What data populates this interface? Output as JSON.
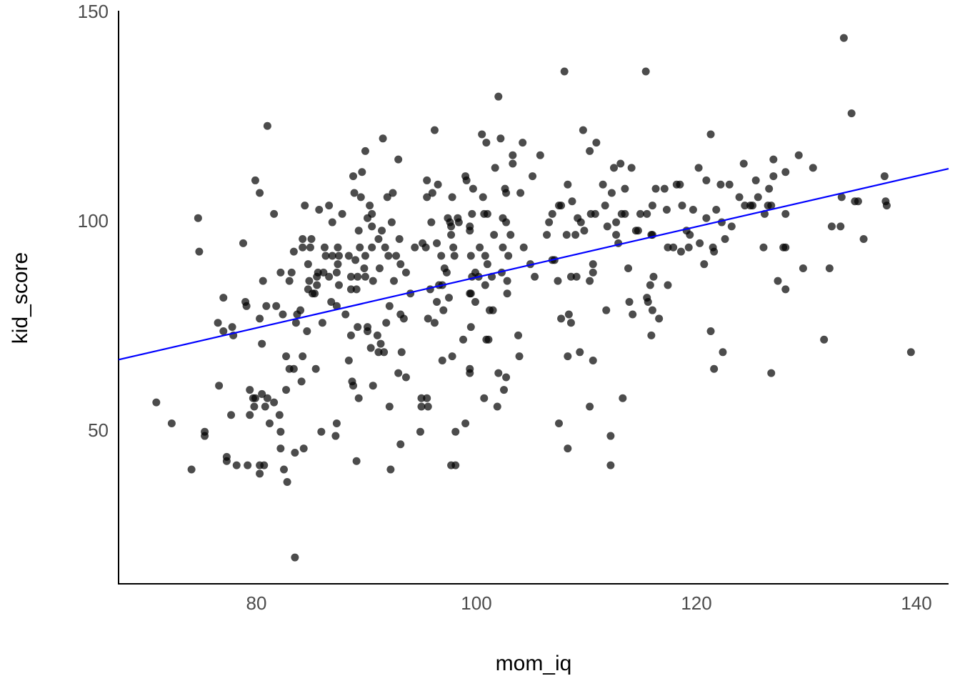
{
  "chart_data": {
    "type": "scatter",
    "x_label": "mom_iq",
    "y_label": "kid_score",
    "xlim": [
      67.47,
      142.92
    ],
    "ylim": [
      13.7,
      150.5
    ],
    "xticks": [
      80,
      100,
      120,
      140
    ],
    "yticks": [
      50,
      100,
      150
    ],
    "grid": false,
    "color": "#000000",
    "opacity": 0.7,
    "x": [
      70.9,
      72.3,
      74.1,
      74.7,
      74.8,
      75.3,
      75.3,
      76.5,
      76.6,
      77.0,
      77.0,
      77.3,
      77.3,
      77.8,
      77.7,
      77.9,
      78.2,
      78.8,
      79.0,
      79.1,
      79.2,
      79.4,
      79.4,
      79.7,
      79.9,
      79.8,
      79.9,
      80.3,
      80.3,
      80.3,
      80.3,
      80.5,
      80.5,
      80.7,
      80.6,
      80.8,
      80.9,
      81.0,
      81.0,
      81.2,
      81.6,
      81.6,
      81.8,
      82.1,
      82.2,
      82.2,
      82.2,
      82.4,
      82.5,
      82.7,
      82.7,
      82.8,
      83.0,
      83.4,
      83.0,
      83.2,
      83.4,
      83.5,
      83.5,
      83.6,
      83.7,
      84.0,
      84.1,
      84.2,
      84.2,
      84.2,
      84.3,
      84.4,
      84.6,
      84.7,
      84.7,
      84.8,
      84.9,
      85.0,
      85.1,
      85.3,
      85.4,
      85.5,
      85.5,
      85.6,
      85.7,
      85.9,
      86.0,
      86.1,
      86.2,
      86.3,
      86.6,
      86.6,
      86.8,
      86.9,
      86.9,
      87.2,
      87.3,
      87.3,
      87.3,
      87.4,
      87.4,
      87.5,
      87.5,
      87.8,
      88.1,
      88.4,
      88.4,
      88.6,
      88.6,
      88.6,
      88.7,
      88.8,
      88.8,
      88.9,
      89.0,
      89.1,
      89.1,
      89.2,
      89.2,
      89.3,
      89.3,
      89.4,
      89.5,
      89.6,
      89.8,
      89.9,
      89.9,
      89.9,
      90.1,
      90.1,
      90.1,
      90.3,
      90.4,
      90.5,
      90.5,
      90.5,
      90.6,
      90.6,
      91.0,
      91.1,
      91.1,
      91.2,
      91.3,
      91.4,
      91.5,
      91.6,
      91.7,
      91.8,
      91.9,
      92.0,
      92.1,
      92.1,
      92.2,
      92.3,
      92.4,
      92.5,
      92.7,
      92.9,
      92.9,
      93.0,
      93.1,
      93.1,
      93.1,
      93.2,
      93.4,
      93.6,
      93.6,
      94.0,
      94.4,
      94.9,
      95.0,
      95.0,
      95.1,
      95.4,
      95.5,
      95.5,
      95.5,
      95.6,
      95.6,
      95.8,
      95.9,
      96.0,
      96.2,
      96.2,
      96.4,
      96.4,
      96.5,
      96.6,
      96.8,
      96.9,
      96.9,
      97.0,
      97.1,
      97.3,
      97.4,
      97.6,
      97.5,
      97.7,
      97.7,
      97.7,
      98.1,
      97.8,
      97.8,
      97.9,
      98.0,
      98.1,
      98.3,
      98.4,
      98.8,
      99.0,
      99.0,
      99.1,
      99.4,
      99.5,
      99.4,
      99.4,
      99.4,
      99.4,
      99.5,
      99.5,
      99.6,
      99.6,
      99.7,
      99.9,
      99.9,
      100.2,
      100.3,
      100.5,
      100.6,
      100.7,
      101.0,
      100.7,
      100.8,
      100.8,
      100.9,
      100.9,
      101.1,
      101.0,
      101.2,
      101.5,
      101.4,
      101.6,
      101.7,
      101.9,
      102.0,
      102.0,
      102.2,
      102.3,
      102.4,
      102.4,
      102.5,
      102.6,
      102.7,
      102.7,
      102.7,
      102.8,
      102.8,
      102.9,
      103.1,
      103.3,
      103.3,
      103.8,
      103.9,
      104.0,
      104.2,
      104.3,
      104.9,
      105.1,
      105.3,
      105.8,
      106.4,
      106.6,
      106.9,
      106.9,
      107.1,
      107.4,
      107.5,
      107.7,
      107.5,
      107.7,
      108.0,
      108.2,
      108.3,
      108.3,
      108.3,
      108.4,
      108.6,
      108.6,
      108.7,
      109.0,
      109.1,
      109.2,
      109.4,
      109.5,
      109.7,
      109.8,
      110.3,
      110.3,
      110.3,
      110.4,
      110.8,
      110.6,
      110.6,
      110.6,
      110.9,
      111.5,
      111.7,
      111.8,
      111.9,
      112.2,
      112.2,
      112.3,
      112.5,
      112.7,
      112.7,
      112.9,
      113.1,
      113.2,
      113.5,
      113.3,
      113.5,
      113.8,
      113.9,
      114.1,
      114.2,
      114.5,
      114.7,
      114.9,
      115.4,
      115.5,
      115.5,
      115.6,
      115.8,
      115.9,
      116.0,
      115.9,
      116.0,
      116.0,
      116.1,
      116.3,
      116.6,
      117.1,
      117.3,
      117.4,
      117.4,
      117.9,
      118.2,
      118.5,
      118.6,
      118.7,
      119.1,
      119.3,
      119.4,
      119.7,
      120.2,
      120.3,
      120.7,
      120.9,
      120.9,
      121.3,
      121.3,
      121.5,
      121.6,
      121.6,
      121.8,
      122.2,
      122.3,
      122.4,
      122.6,
      123.0,
      123.2,
      123.9,
      124.3,
      124.4,
      124.9,
      125.1,
      125.4,
      125.6,
      126.1,
      126.2,
      126.5,
      126.8,
      126.6,
      126.8,
      127.0,
      127.0,
      127.4,
      127.9,
      128.1,
      128.1,
      128.1,
      128.1,
      129.3,
      129.7,
      130.6,
      131.6,
      132.1,
      132.3,
      133.1,
      133.2,
      133.4,
      134.1,
      134.4,
      134.7,
      135.2,
      137.1,
      137.2,
      137.3,
      139.5
    ],
    "values": [
      57,
      52,
      41,
      101,
      93,
      50,
      49,
      76,
      61,
      82,
      74,
      44,
      43,
      75,
      54,
      73,
      42,
      95,
      81,
      80,
      42,
      60,
      54,
      58,
      58,
      56,
      110,
      77,
      42,
      40,
      107,
      71,
      59,
      42,
      86,
      56,
      80,
      123,
      58,
      52,
      57,
      102,
      80,
      54,
      50,
      88,
      46,
      78,
      41,
      68,
      60,
      38,
      65,
      65,
      86,
      88,
      93,
      45,
      20,
      76,
      78,
      79,
      62,
      68,
      96,
      94,
      46,
      104,
      74,
      84,
      90,
      86,
      94,
      96,
      83,
      83,
      65,
      85,
      87,
      88,
      103,
      50,
      76,
      88,
      94,
      92,
      104,
      87,
      81,
      100,
      92,
      49,
      52,
      88,
      80,
      90,
      94,
      85,
      92,
      102,
      78,
      92,
      67,
      73,
      87,
      84,
      62,
      61,
      111,
      107,
      91,
      43,
      84,
      75,
      87,
      58,
      98,
      94,
      106,
      112,
      89,
      87,
      117,
      92,
      101,
      74,
      75,
      104,
      70,
      94,
      102,
      99,
      61,
      86,
      73,
      96,
      69,
      89,
      71,
      98,
      120,
      69,
      94,
      76,
      106,
      92,
      80,
      56,
      41,
      100,
      107,
      86,
      92,
      115,
      64,
      96,
      78,
      47,
      90,
      69,
      77,
      88,
      63,
      83,
      94,
      50,
      58,
      56,
      95,
      94,
      110,
      106,
      58,
      56,
      77,
      84,
      100,
      107,
      122,
      76,
      81,
      95,
      109,
      85,
      92,
      67,
      85,
      79,
      89,
      88,
      101,
      100,
      82,
      99,
      97,
      42,
      42,
      68,
      106,
      94,
      92,
      50,
      101,
      100,
      72,
      52,
      111,
      110,
      83,
      83,
      99,
      98,
      65,
      64,
      92,
      75,
      102,
      87,
      108,
      81,
      88,
      87,
      94,
      121,
      106,
      102,
      102,
      58,
      92,
      85,
      119,
      72,
      72,
      90,
      79,
      79,
      87,
      97,
      113,
      56,
      64,
      130,
      120,
      88,
      94,
      101,
      60,
      108,
      107,
      63,
      100,
      86,
      83,
      92,
      97,
      116,
      114,
      73,
      68,
      107,
      119,
      94,
      90,
      111,
      87,
      116,
      97,
      100,
      102,
      91,
      91,
      86,
      104,
      104,
      52,
      77,
      136,
      97,
      109,
      68,
      46,
      78,
      76,
      87,
      105,
      97,
      87,
      101,
      69,
      100,
      122,
      98,
      117,
      56,
      86,
      102,
      102,
      88,
      67,
      90,
      119,
      109,
      104,
      79,
      99,
      49,
      42,
      107,
      113,
      97,
      100,
      95,
      114,
      102,
      102,
      58,
      108,
      89,
      81,
      113,
      78,
      98,
      98,
      102,
      136,
      102,
      82,
      81,
      85,
      97,
      97,
      73,
      79,
      104,
      87,
      108,
      77,
      108,
      103,
      85,
      94,
      94,
      109,
      109,
      93,
      104,
      98,
      94,
      97,
      103,
      113,
      95,
      90,
      110,
      101,
      121,
      74,
      94,
      93,
      65,
      103,
      109,
      100,
      69,
      96,
      109,
      99,
      106,
      114,
      104,
      104,
      104,
      110,
      106,
      94,
      102,
      104,
      104,
      108,
      64,
      115,
      111,
      86,
      94,
      94,
      84,
      112,
      102,
      116,
      89,
      113,
      72,
      89,
      99,
      99,
      106,
      144,
      126,
      105,
      105,
      96,
      111,
      105,
      104,
      69
    ],
    "trend_line": {
      "x": [
        67.47,
        142.92
      ],
      "values": [
        67.2,
        112.8
      ],
      "color": "#0000ff"
    }
  }
}
